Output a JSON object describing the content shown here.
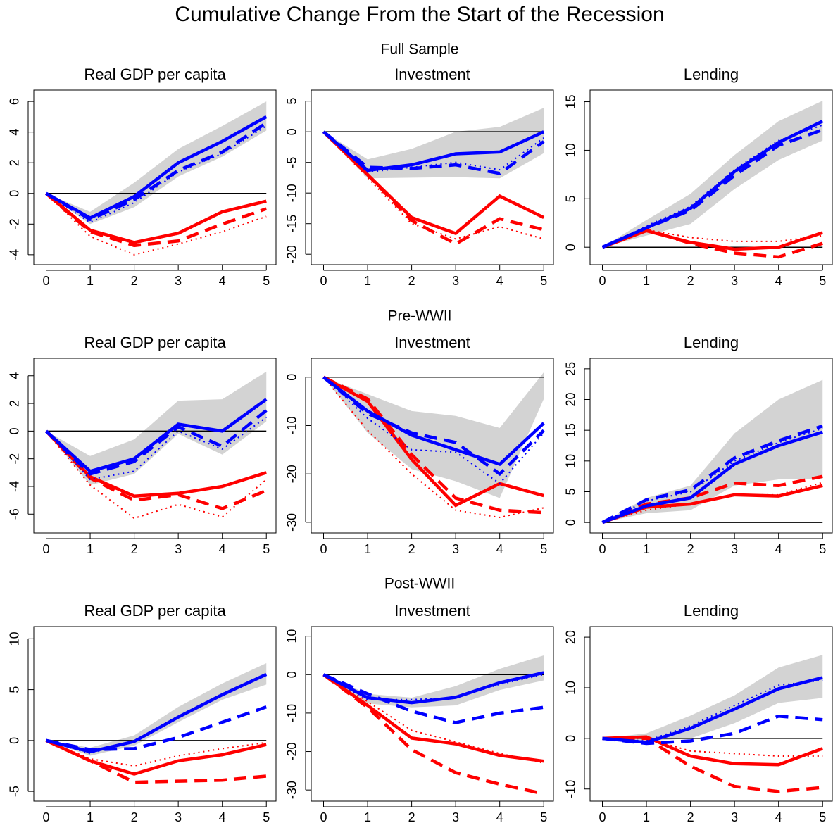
{
  "title": "Cumulative Change From the Start of the Recession",
  "sections": [
    "Full Sample",
    "Pre-WWII",
    "Post-WWII"
  ],
  "chart_data": [
    {
      "type": "line",
      "title": "Real GDP per capita",
      "x": [
        0,
        1,
        2,
        3,
        4,
        5
      ],
      "xlim": [
        -0.28,
        5.22
      ],
      "xticks": [
        0,
        1,
        2,
        3,
        4,
        5
      ],
      "ylim": [
        -4.65,
        6.74
      ],
      "yticks": [
        -4,
        -2,
        0,
        2,
        4,
        6
      ],
      "hline": 0,
      "band": {
        "color": "#d3d3d3",
        "lower": [
          0,
          -2.0,
          -0.9,
          1.1,
          2.4,
          4.1
        ],
        "upper": [
          0,
          -1.2,
          0.7,
          2.9,
          4.4,
          6.0
        ]
      },
      "series": [
        {
          "color": "#ff0000",
          "dash": "dotted",
          "values": [
            0,
            -2.8,
            -4.0,
            -3.3,
            -2.5,
            -1.5
          ]
        },
        {
          "color": "#ff0000",
          "dash": "dashed",
          "values": [
            0,
            -2.5,
            -3.4,
            -3.1,
            -2.0,
            -1.0
          ]
        },
        {
          "color": "#ff0000",
          "dash": "solid",
          "values": [
            0,
            -2.4,
            -3.2,
            -2.6,
            -1.2,
            -0.5
          ]
        },
        {
          "color": "#0000ff",
          "dash": "dotted",
          "values": [
            0,
            -1.9,
            -0.6,
            1.4,
            2.6,
            4.4
          ]
        },
        {
          "color": "#0000ff",
          "dash": "dashed",
          "values": [
            0,
            -1.7,
            -0.4,
            1.5,
            2.7,
            4.6
          ]
        },
        {
          "color": "#0000ff",
          "dash": "solid",
          "values": [
            0,
            -1.6,
            -0.2,
            2.0,
            3.4,
            5.0
          ]
        }
      ]
    },
    {
      "type": "line",
      "title": "Investment",
      "x": [
        0,
        1,
        2,
        3,
        4,
        5
      ],
      "xlim": [
        -0.28,
        5.22
      ],
      "xticks": [
        0,
        1,
        2,
        3,
        4,
        5
      ],
      "ylim": [
        -21.7,
        6.8
      ],
      "yticks": [
        -20,
        -15,
        -10,
        -5,
        0,
        5
      ],
      "hline": 0,
      "band": {
        "color": "#d3d3d3",
        "lower": [
          0,
          -7.6,
          -7.5,
          -7.4,
          -7.6,
          -3.5
        ],
        "upper": [
          0,
          -4.5,
          -2.8,
          0,
          0.8,
          3.9
        ]
      },
      "series": [
        {
          "color": "#ff0000",
          "dash": "dotted",
          "values": [
            0,
            -7.5,
            -15,
            -17.5,
            -15.5,
            -17.5
          ]
        },
        {
          "color": "#ff0000",
          "dash": "dashed",
          "values": [
            0,
            -7,
            -14.5,
            -18.3,
            -14.2,
            -16
          ]
        },
        {
          "color": "#ff0000",
          "dash": "solid",
          "values": [
            0,
            -7,
            -14,
            -16.6,
            -10.5,
            -14
          ]
        },
        {
          "color": "#0000ff",
          "dash": "dotted",
          "values": [
            0,
            -6.6,
            -5.8,
            -5.0,
            -6.2,
            -1.0
          ]
        },
        {
          "color": "#0000ff",
          "dash": "dashed",
          "values": [
            0,
            -5.8,
            -6.0,
            -5.4,
            -6.8,
            -1.6
          ]
        },
        {
          "color": "#0000ff",
          "dash": "solid",
          "values": [
            0,
            -6.3,
            -5.4,
            -3.6,
            -3.3,
            0
          ]
        }
      ]
    },
    {
      "type": "line",
      "title": "Lending",
      "x": [
        0,
        1,
        2,
        3,
        4,
        5
      ],
      "xlim": [
        -0.28,
        5.22
      ],
      "xticks": [
        0,
        1,
        2,
        3,
        4,
        5
      ],
      "ylim": [
        -1.8,
        16.2
      ],
      "yticks": [
        0,
        5,
        10,
        15
      ],
      "hline": 0,
      "band": {
        "color": "#d3d3d3",
        "lower": [
          0,
          1.2,
          2.4,
          6.0,
          9.0,
          11
        ],
        "upper": [
          0,
          2.8,
          5.5,
          9.5,
          13,
          15.1
        ]
      },
      "series": [
        {
          "color": "#ff0000",
          "dash": "dotted",
          "values": [
            0,
            1.8,
            1.0,
            0.6,
            0.6,
            1.2
          ]
        },
        {
          "color": "#ff0000",
          "dash": "dashed",
          "values": [
            0,
            1.8,
            0.4,
            -0.6,
            -1.0,
            0.4
          ]
        },
        {
          "color": "#ff0000",
          "dash": "solid",
          "values": [
            0,
            1.7,
            0.5,
            -0.2,
            0,
            1.5
          ]
        },
        {
          "color": "#0000ff",
          "dash": "dotted",
          "values": [
            0,
            2.2,
            4.2,
            8,
            11,
            12.6
          ]
        },
        {
          "color": "#0000ff",
          "dash": "dashed",
          "values": [
            0,
            2,
            3.8,
            7.4,
            10.5,
            12.1
          ]
        },
        {
          "color": "#0000ff",
          "dash": "solid",
          "values": [
            0,
            2,
            4,
            7.8,
            10.8,
            13
          ]
        }
      ]
    },
    {
      "type": "line",
      "title": "Real GDP per capita",
      "x": [
        0,
        1,
        2,
        3,
        4,
        5
      ],
      "xlim": [
        -0.28,
        5.22
      ],
      "xticks": [
        0,
        1,
        2,
        3,
        4,
        5
      ],
      "ylim": [
        -7.36,
        5.26
      ],
      "yticks": [
        -6,
        -4,
        -2,
        0,
        2,
        4
      ],
      "hline": 0,
      "band": {
        "color": "#d3d3d3",
        "lower": [
          0,
          -3.9,
          -3.1,
          -0.2,
          -1.7,
          0.7
        ],
        "upper": [
          0,
          -1.8,
          -0.6,
          2.2,
          2.3,
          4.3
        ]
      },
      "series": [
        {
          "color": "#ff0000",
          "dash": "dotted",
          "values": [
            0,
            -3.9,
            -6.3,
            -5.3,
            -6.2,
            -3.5
          ]
        },
        {
          "color": "#ff0000",
          "dash": "dashed",
          "values": [
            0,
            -3.4,
            -5.0,
            -4.6,
            -5.6,
            -4.3
          ]
        },
        {
          "color": "#ff0000",
          "dash": "solid",
          "values": [
            0,
            -3.3,
            -4.7,
            -4.5,
            -4.0,
            -3.0
          ]
        },
        {
          "color": "#0000ff",
          "dash": "dotted",
          "values": [
            0,
            -3.5,
            -2.9,
            0,
            -1.3,
            1.0
          ]
        },
        {
          "color": "#0000ff",
          "dash": "dashed",
          "values": [
            0,
            -3.1,
            -2.2,
            0.3,
            -1.1,
            1.5
          ]
        },
        {
          "color": "#0000ff",
          "dash": "solid",
          "values": [
            0,
            -2.9,
            -2.0,
            0.5,
            0,
            2.3
          ]
        }
      ]
    },
    {
      "type": "line",
      "title": "Investment",
      "x": [
        0,
        1,
        2,
        3,
        4,
        5
      ],
      "xlim": [
        -0.28,
        5.22
      ],
      "xticks": [
        0,
        1,
        2,
        3,
        4,
        5
      ],
      "ylim": [
        -32.2,
        3.9
      ],
      "yticks": [
        -30,
        -20,
        -10,
        0
      ],
      "hline": 0,
      "band": {
        "color": "#d3d3d3",
        "lower": [
          0,
          -11.5,
          -19,
          -21.5,
          -25,
          -4.5
        ],
        "upper": [
          0,
          -3.5,
          -7,
          -8,
          -10.5,
          1
        ]
      },
      "series": [
        {
          "color": "#ff0000",
          "dash": "dotted",
          "values": [
            0,
            -11,
            -20,
            -27.5,
            -29,
            -27
          ]
        },
        {
          "color": "#ff0000",
          "dash": "dashed",
          "values": [
            0,
            -4.5,
            -16,
            -25,
            -27.5,
            -28
          ]
        },
        {
          "color": "#ff0000",
          "dash": "solid",
          "values": [
            0,
            -5,
            -17,
            -26.5,
            -22,
            -24.5
          ]
        },
        {
          "color": "#0000ff",
          "dash": "dotted",
          "values": [
            0,
            -8.5,
            -15,
            -15.5,
            -22,
            -11.5
          ]
        },
        {
          "color": "#0000ff",
          "dash": "dashed",
          "values": [
            0,
            -7.5,
            -11.5,
            -13.5,
            -20,
            -11
          ]
        },
        {
          "color": "#0000ff",
          "dash": "solid",
          "values": [
            0,
            -7,
            -12,
            -15,
            -18,
            -9.5
          ]
        }
      ]
    },
    {
      "type": "line",
      "title": "Lending",
      "x": [
        0,
        1,
        2,
        3,
        4,
        5
      ],
      "xlim": [
        -0.28,
        5.22
      ],
      "xticks": [
        0,
        1,
        2,
        3,
        4,
        5
      ],
      "ylim": [
        -1.7,
        26.7
      ],
      "yticks": [
        0,
        5,
        10,
        15,
        20,
        25
      ],
      "hline": 0,
      "band": {
        "color": "#d3d3d3",
        "lower": [
          0,
          1.5,
          2,
          6,
          7,
          7
        ],
        "upper": [
          0,
          4,
          6,
          14.5,
          20,
          23.2
        ]
      },
      "series": [
        {
          "color": "#ff0000",
          "dash": "dotted",
          "values": [
            0,
            2,
            3,
            4.5,
            4.5,
            6.5
          ]
        },
        {
          "color": "#ff0000",
          "dash": "dashed",
          "values": [
            0,
            3,
            4,
            6.4,
            6,
            7.5
          ]
        },
        {
          "color": "#ff0000",
          "dash": "solid",
          "values": [
            0,
            2.5,
            3,
            4.5,
            4.3,
            6
          ]
        },
        {
          "color": "#0000ff",
          "dash": "dotted",
          "values": [
            0,
            3.5,
            5,
            10,
            13,
            15.3
          ]
        },
        {
          "color": "#0000ff",
          "dash": "dashed",
          "values": [
            0,
            3.7,
            5.3,
            10.5,
            13.3,
            15.7
          ]
        },
        {
          "color": "#0000ff",
          "dash": "solid",
          "values": [
            0,
            2.7,
            4,
            9.5,
            12.5,
            14.7
          ]
        }
      ]
    },
    {
      "type": "line",
      "title": "Real GDP per capita",
      "x": [
        0,
        1,
        2,
        3,
        4,
        5
      ],
      "xlim": [
        -0.28,
        5.22
      ],
      "xticks": [
        0,
        1,
        2,
        3,
        4,
        5
      ],
      "ylim": [
        -5.96,
        11.2
      ],
      "yticks": [
        -5,
        0,
        5,
        10
      ],
      "hline": 0,
      "band": {
        "color": "#d3d3d3",
        "lower": [
          0,
          -1.5,
          -0.5,
          1.8,
          4,
          5.5
        ],
        "upper": [
          0,
          -0.7,
          0.5,
          3.3,
          5.6,
          7.6
        ]
      },
      "series": [
        {
          "color": "#ff0000",
          "dash": "dotted",
          "values": [
            0,
            -1.8,
            -2.5,
            -1.5,
            -0.8,
            -0.2
          ]
        },
        {
          "color": "#ff0000",
          "dash": "dashed",
          "values": [
            0,
            -2,
            -4.1,
            -4,
            -3.9,
            -3.5
          ]
        },
        {
          "color": "#ff0000",
          "dash": "solid",
          "values": [
            0,
            -2,
            -3.3,
            -2,
            -1.4,
            -0.4
          ]
        },
        {
          "color": "#0000ff",
          "dash": "dotted",
          "values": [
            0,
            -1.3,
            0,
            2.4,
            4.6,
            6.4
          ]
        },
        {
          "color": "#0000ff",
          "dash": "dashed",
          "values": [
            0,
            -0.9,
            -0.8,
            0.3,
            1.8,
            3.3
          ]
        },
        {
          "color": "#0000ff",
          "dash": "solid",
          "values": [
            0,
            -1.1,
            -0.1,
            2.3,
            4.5,
            6.5
          ]
        }
      ]
    },
    {
      "type": "line",
      "title": "Investment",
      "x": [
        0,
        1,
        2,
        3,
        4,
        5
      ],
      "xlim": [
        -0.28,
        5.22
      ],
      "xticks": [
        0,
        1,
        2,
        3,
        4,
        5
      ],
      "ylim": [
        -32.9,
        12.5
      ],
      "yticks": [
        -30,
        -20,
        -10,
        0,
        10
      ],
      "hline": 0,
      "band": {
        "color": "#d3d3d3",
        "lower": [
          0,
          -7.5,
          -8.5,
          -8,
          -4,
          -1.5
        ],
        "upper": [
          0,
          -5,
          -6,
          -3,
          1.5,
          5
        ]
      },
      "series": [
        {
          "color": "#ff0000",
          "dash": "dotted",
          "values": [
            0,
            -7,
            -14.5,
            -17.5,
            -20.5,
            -23
          ]
        },
        {
          "color": "#ff0000",
          "dash": "dashed",
          "values": [
            0,
            -8.5,
            -19.5,
            -25.5,
            -28.5,
            -31
          ]
        },
        {
          "color": "#ff0000",
          "dash": "solid",
          "values": [
            0,
            -8,
            -16.5,
            -18,
            -21,
            -22.5
          ]
        },
        {
          "color": "#0000ff",
          "dash": "dotted",
          "values": [
            0,
            -6.5,
            -6.5,
            -6,
            -2.5,
            0
          ]
        },
        {
          "color": "#0000ff",
          "dash": "dashed",
          "values": [
            0,
            -5,
            -9.5,
            -12.5,
            -10,
            -8.5
          ]
        },
        {
          "color": "#0000ff",
          "dash": "solid",
          "values": [
            0,
            -6,
            -7.3,
            -5.9,
            -2.1,
            0.5
          ]
        }
      ]
    },
    {
      "type": "line",
      "title": "Lending",
      "x": [
        0,
        1,
        2,
        3,
        4,
        5
      ],
      "xlim": [
        -0.28,
        5.22
      ],
      "xticks": [
        0,
        1,
        2,
        3,
        4,
        5
      ],
      "ylim": [
        -12.4,
        22.1
      ],
      "yticks": [
        -10,
        0,
        10,
        20
      ],
      "hline": 0,
      "band": {
        "color": "#d3d3d3",
        "lower": [
          0,
          -0.5,
          0,
          3,
          7,
          8
        ],
        "upper": [
          0,
          1,
          4.5,
          8.5,
          14,
          16.5
        ]
      },
      "series": [
        {
          "color": "#ff0000",
          "dash": "dotted",
          "values": [
            0,
            0,
            -2.5,
            -3,
            -3.5,
            -3.5
          ]
        },
        {
          "color": "#ff0000",
          "dash": "dashed",
          "values": [
            0,
            0,
            -5.5,
            -9.5,
            -10.5,
            -9.7
          ]
        },
        {
          "color": "#ff0000",
          "dash": "solid",
          "values": [
            0,
            0.3,
            -3.5,
            -5,
            -5.2,
            -2
          ]
        },
        {
          "color": "#0000ff",
          "dash": "dotted",
          "values": [
            0,
            -0.5,
            2.5,
            6.5,
            10.5,
            11.5
          ]
        },
        {
          "color": "#0000ff",
          "dash": "dashed",
          "values": [
            0,
            -1,
            -0.5,
            1,
            4.4,
            3.7
          ]
        },
        {
          "color": "#0000ff",
          "dash": "solid",
          "values": [
            0,
            -0.8,
            2,
            5.8,
            9.8,
            12
          ]
        }
      ]
    }
  ]
}
